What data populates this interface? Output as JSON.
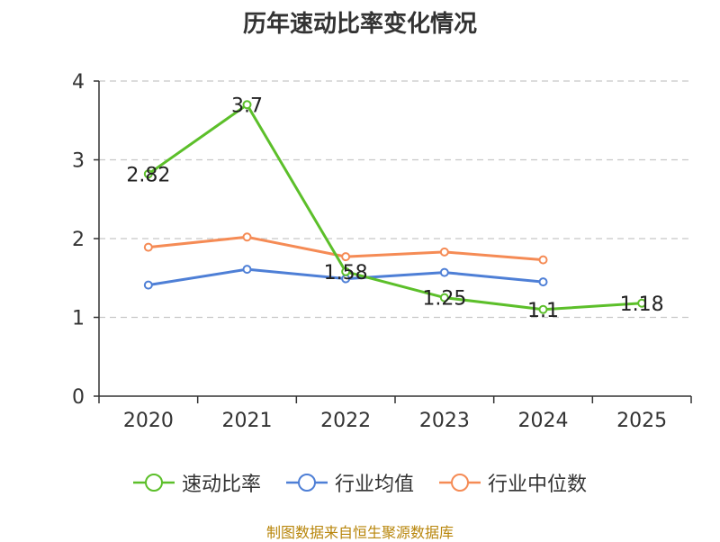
{
  "chart_data": {
    "type": "line",
    "title": "历年速动比率变化情况",
    "categories": [
      "2020",
      "2021",
      "2022",
      "2023",
      "2024",
      "2025"
    ],
    "ylim": [
      0,
      4
    ],
    "yticks": [
      0,
      1,
      2,
      3,
      4
    ],
    "grid": true,
    "legend_position": "bottom",
    "series": [
      {
        "name": "速动比率",
        "color": "#5cbf2a",
        "values": [
          2.82,
          3.7,
          1.58,
          1.25,
          1.1,
          1.18
        ],
        "labels": [
          "2.82",
          "3.7",
          "1.58",
          "1.25",
          "1.1",
          "1.18"
        ]
      },
      {
        "name": "行业均值",
        "color": "#4e7fd6",
        "values": [
          1.41,
          1.61,
          1.49,
          1.57,
          1.45,
          null
        ]
      },
      {
        "name": "行业中位数",
        "color": "#f58b55",
        "values": [
          1.89,
          2.02,
          1.77,
          1.83,
          1.73,
          null
        ]
      }
    ]
  },
  "footer": {
    "source": "制图数据来自恒生聚源数据库"
  }
}
